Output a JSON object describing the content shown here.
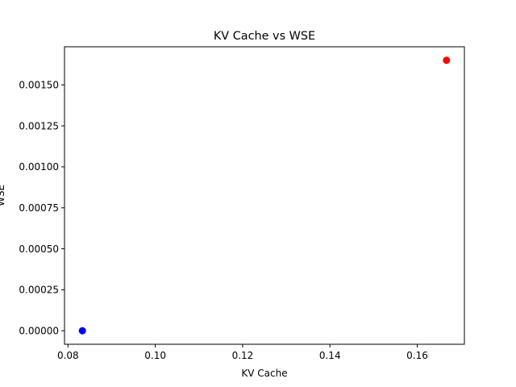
{
  "chart_data": {
    "type": "scatter",
    "title": "KV Cache vs WSE",
    "xlabel": "KV Cache",
    "ylabel": "WSE",
    "xlim": [
      0.0792,
      0.1708
    ],
    "ylim": [
      -8.25e-05,
      0.0017325
    ],
    "x_ticks": [
      0.08,
      0.1,
      0.12,
      0.14,
      0.16
    ],
    "x_tick_labels": [
      "0.08",
      "0.10",
      "0.12",
      "0.14",
      "0.16"
    ],
    "y_ticks": [
      0.0,
      0.00025,
      0.0005,
      0.00075,
      0.001,
      0.00125,
      0.0015
    ],
    "y_tick_labels": [
      "0.00000",
      "0.00025",
      "0.00050",
      "0.00075",
      "0.00100",
      "0.00125",
      "0.00150"
    ],
    "grid": false,
    "points": [
      {
        "x": 0.0833,
        "y": 0.0,
        "color": "#0000ff"
      },
      {
        "x": 0.1667,
        "y": 0.00165,
        "color": "#ff0000"
      }
    ]
  }
}
